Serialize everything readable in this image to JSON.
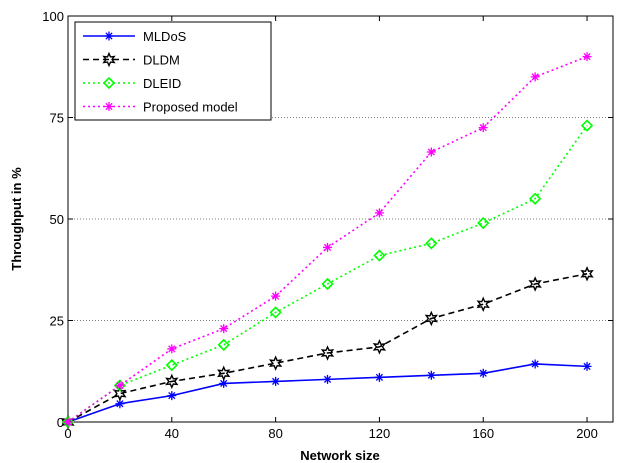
{
  "chart_data": {
    "type": "line",
    "title": "",
    "xlabel": "Network size",
    "ylabel": "Throughput in %",
    "xlim": [
      0,
      210
    ],
    "ylim": [
      0,
      100
    ],
    "x_ticks": [
      0,
      40,
      80,
      120,
      160,
      200
    ],
    "y_ticks": [
      0,
      25,
      50,
      75,
      100
    ],
    "grid": "horizontal dotted",
    "legend_position": "top-left",
    "x": [
      0,
      20,
      40,
      60,
      80,
      100,
      120,
      140,
      160,
      180,
      200
    ],
    "series": [
      {
        "name": "MLDoS",
        "color": "#0000ff",
        "line_style": "solid",
        "marker": "star",
        "values": [
          0,
          4.5,
          6.5,
          9.5,
          10,
          10.5,
          11,
          11.5,
          12,
          14.3,
          13.7
        ]
      },
      {
        "name": "DLDM",
        "color": "#000000",
        "line_style": "dashed",
        "marker": "hexagram",
        "values": [
          0,
          7,
          10,
          12,
          14.5,
          17,
          18.5,
          25.5,
          29,
          34,
          36.5
        ]
      },
      {
        "name": "DLEID",
        "color": "#00ff00",
        "line_style": "dotted",
        "marker": "diamond",
        "values": [
          0,
          9,
          14,
          19,
          27,
          34,
          41,
          44,
          49,
          55,
          73
        ]
      },
      {
        "name": "Proposed model",
        "color": "#ff00ff",
        "line_style": "dotted",
        "marker": "star",
        "values": [
          0,
          9,
          18,
          23,
          31,
          43,
          51.5,
          66.5,
          72.5,
          85,
          90
        ]
      }
    ]
  }
}
